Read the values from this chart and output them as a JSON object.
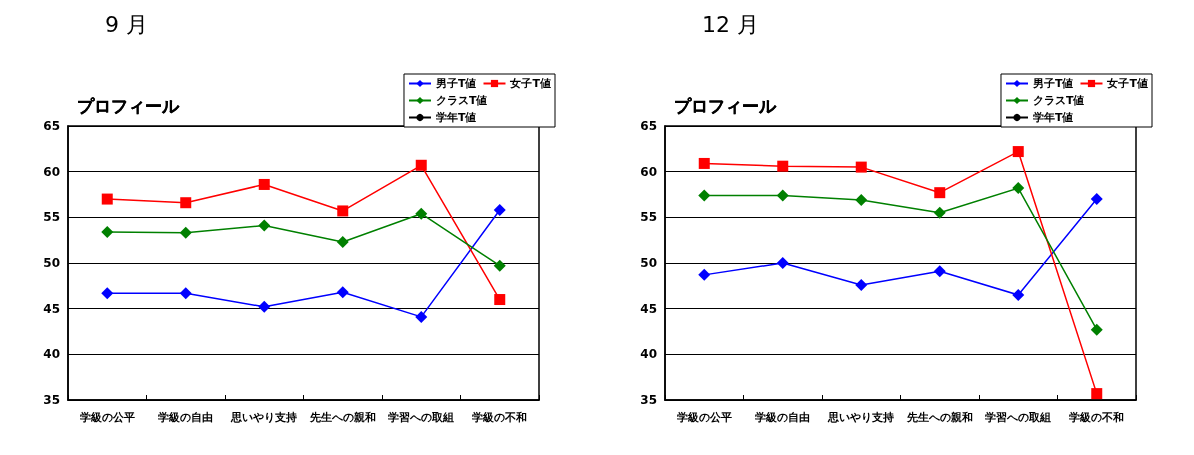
{
  "chart_data": [
    {
      "type": "line",
      "title": "9 月",
      "subtitle": "プロフィール",
      "categories": [
        "学級の公平",
        "学級の自由",
        "思いやり支持",
        "先生への親和",
        "学習への取組",
        "学級の不和"
      ],
      "series": [
        {
          "name": "男子T値",
          "color": "#0000ff",
          "marker": "diamond",
          "values": [
            46.7,
            46.7,
            45.2,
            46.8,
            44.1,
            55.8
          ]
        },
        {
          "name": "女子T値",
          "color": "#ff0000",
          "marker": "square",
          "values": [
            57.0,
            56.6,
            58.6,
            55.7,
            60.7,
            46.0
          ]
        },
        {
          "name": "クラスT値",
          "color": "#008000",
          "marker": "diamond",
          "values": [
            53.4,
            53.3,
            54.1,
            52.3,
            55.4,
            49.7
          ]
        },
        {
          "name": "学年T値",
          "color": "#000000",
          "marker": "circle",
          "values": [
            null,
            null,
            null,
            null,
            null,
            null
          ]
        }
      ],
      "ylim": [
        35,
        65
      ],
      "yticks": [
        35,
        40,
        45,
        50,
        55,
        60,
        65
      ],
      "grid": "y",
      "legend": "top right"
    },
    {
      "type": "line",
      "title": "12 月",
      "subtitle": "プロフィール",
      "categories": [
        "学級の公平",
        "学級の自由",
        "思いやり支持",
        "先生への親和",
        "学習への取組",
        "学級の不和"
      ],
      "series": [
        {
          "name": "男子T値",
          "color": "#0000ff",
          "marker": "diamond",
          "values": [
            48.7,
            50.0,
            47.6,
            49.1,
            46.5,
            57.0
          ]
        },
        {
          "name": "女子T値",
          "color": "#ff0000",
          "marker": "square",
          "values": [
            60.9,
            60.6,
            60.5,
            57.7,
            62.2,
            35.7
          ]
        },
        {
          "name": "クラスT値",
          "color": "#008000",
          "marker": "diamond",
          "values": [
            57.4,
            57.4,
            56.9,
            55.5,
            58.2,
            42.7
          ]
        },
        {
          "name": "学年T値",
          "color": "#000000",
          "marker": "circle",
          "values": [
            null,
            null,
            null,
            null,
            null,
            null
          ]
        }
      ],
      "ylim": [
        35,
        65
      ],
      "yticks": [
        35,
        40,
        45,
        50,
        55,
        60,
        65
      ],
      "grid": "y",
      "legend": "top right"
    }
  ]
}
